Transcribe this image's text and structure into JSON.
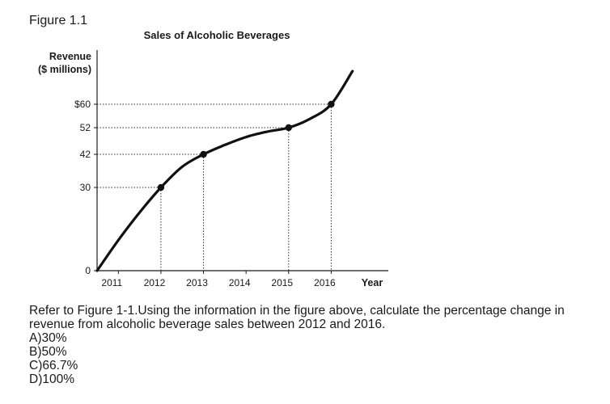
{
  "figure_label": "Figure 1.1",
  "chart_data": {
    "type": "line",
    "title": "Sales of Alcoholic Beverages",
    "ylabel_line1": "Revenue",
    "ylabel_line2": "($ millions)",
    "xlabel": "Year",
    "y_ticks": [
      {
        "value": 0,
        "label": "0"
      },
      {
        "value": 30,
        "label": "30"
      },
      {
        "value": 42,
        "label": "42"
      },
      {
        "value": 52,
        "label": "52"
      },
      {
        "value": 60,
        "label": "$60"
      }
    ],
    "x_ticks": [
      "2011",
      "2012",
      "2013",
      "2014",
      "2015",
      "2016"
    ],
    "curve": {
      "x": [
        2010.5,
        2011.0,
        2011.5,
        2012.0,
        2012.5,
        2013.0,
        2013.5,
        2014.0,
        2014.5,
        2015.0,
        2015.5,
        2016.0,
        2016.5
      ],
      "y": [
        0,
        11,
        21,
        30,
        37.5,
        42,
        45.5,
        48.5,
        50.5,
        52,
        55,
        60,
        72
      ]
    },
    "marked_points": [
      {
        "x": 2012,
        "y": 30
      },
      {
        "x": 2013,
        "y": 42
      },
      {
        "x": 2015,
        "y": 52
      },
      {
        "x": 2016,
        "y": 60
      }
    ],
    "grid": false,
    "dotted_guides": true
  },
  "question": {
    "text": "Refer to Figure 1-1.Using the information in the figure above, calculate the percentage change in revenue from alcoholic beverage sales between 2012 and 2016.",
    "options": [
      "A)30%",
      "B)50%",
      "C)66.7%",
      "D)100%"
    ]
  }
}
